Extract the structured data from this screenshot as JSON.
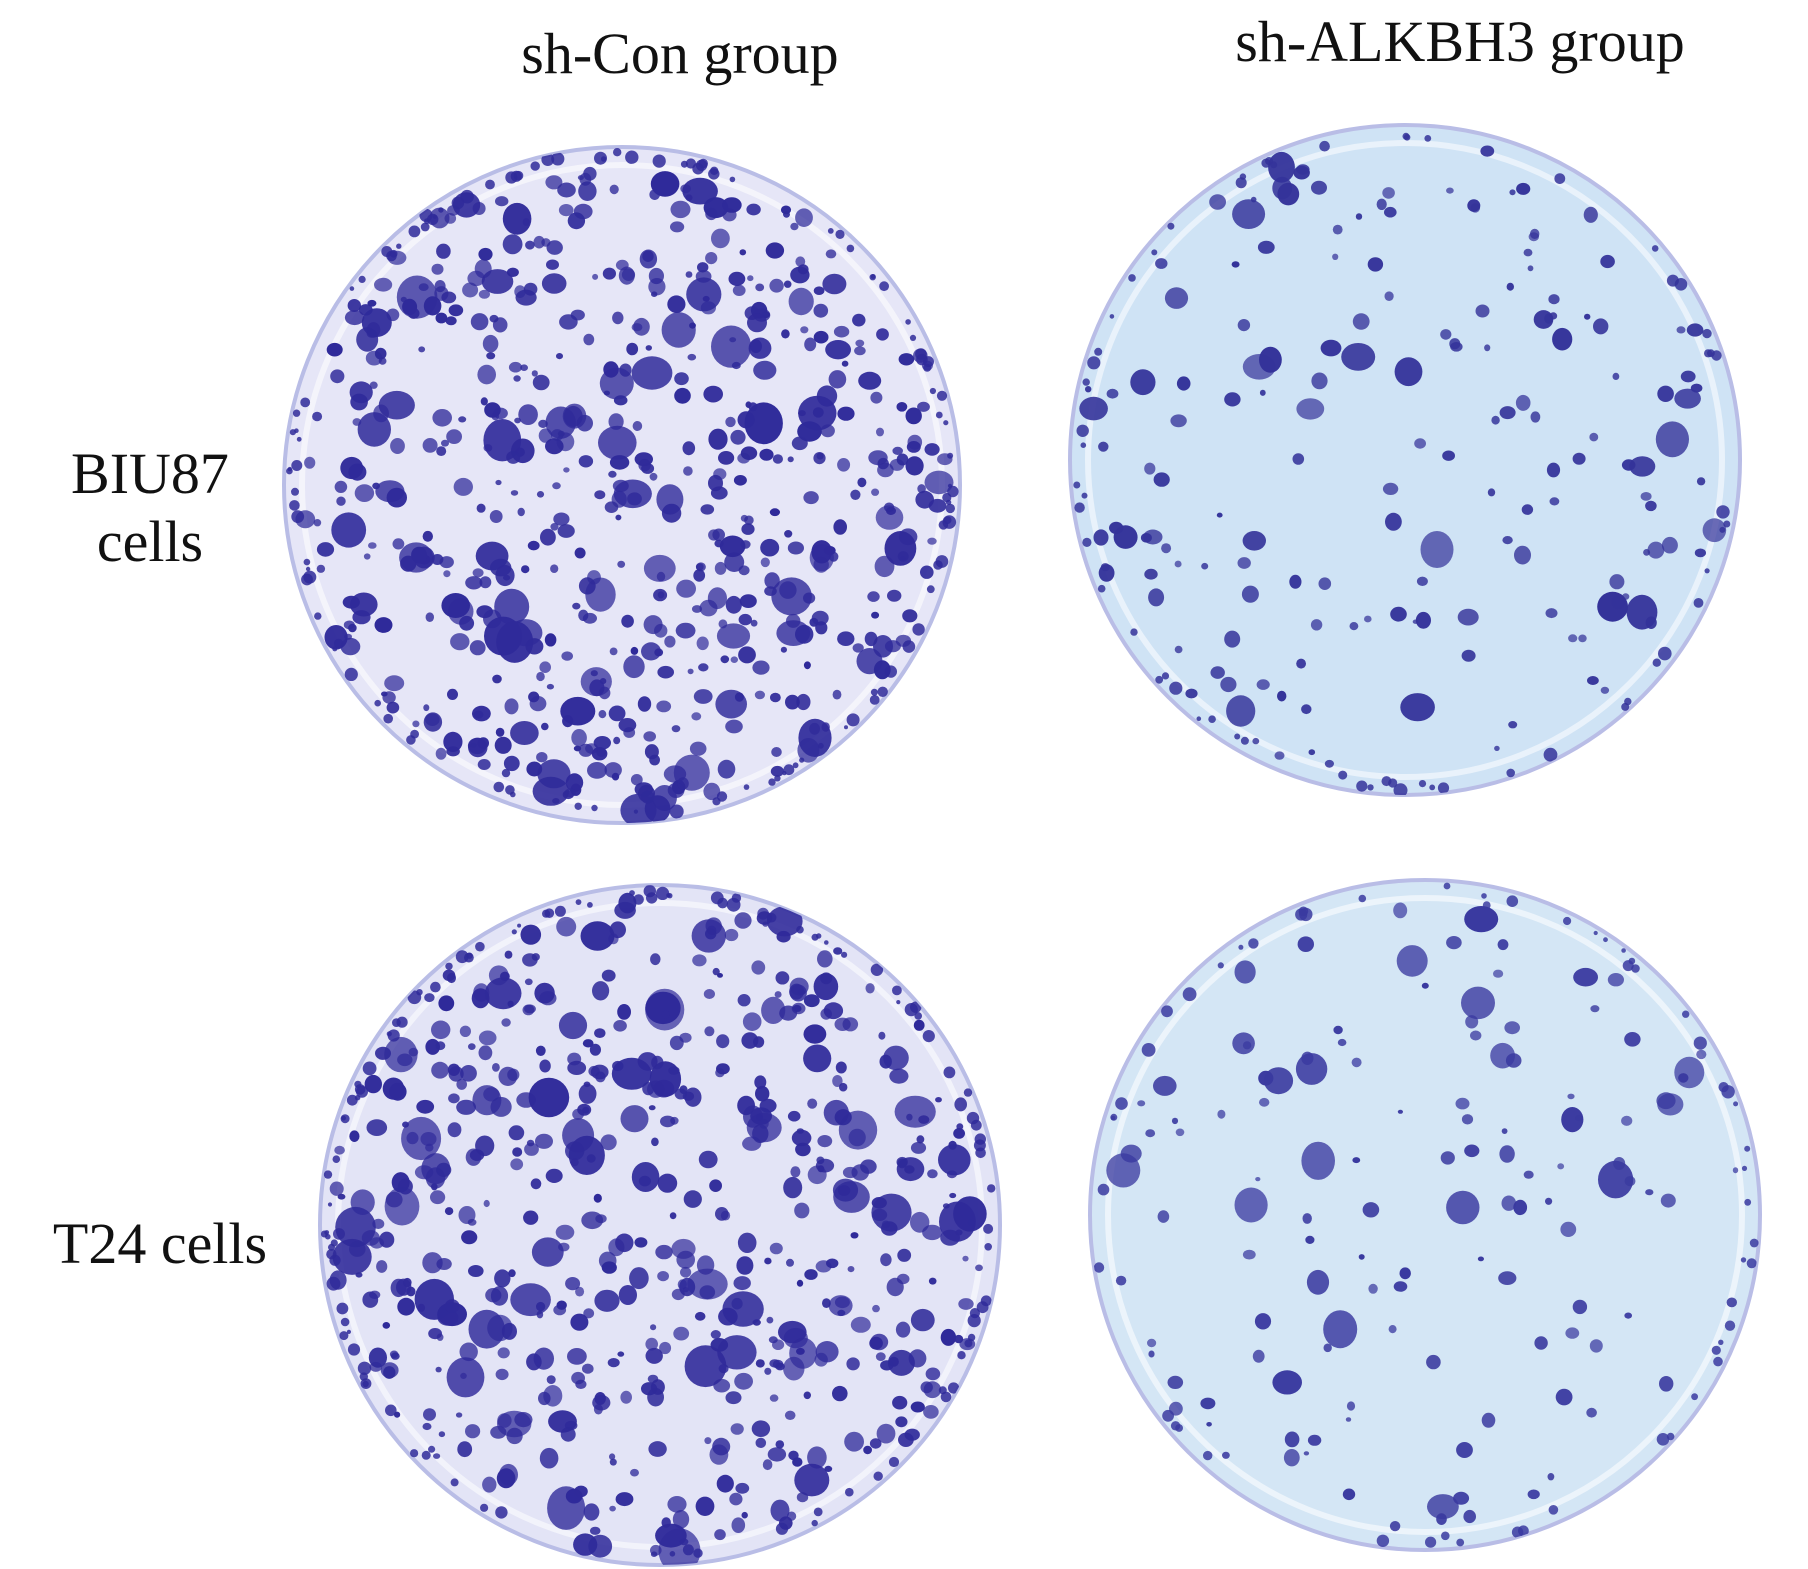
{
  "columns": [
    {
      "label": "sh-Con group"
    },
    {
      "label": "sh-ALKBH3 group"
    }
  ],
  "rows": [
    {
      "label_lines": [
        "BIU87",
        "cells"
      ]
    },
    {
      "label_lines": [
        "T24 cells"
      ]
    }
  ],
  "plates": [
    {
      "name": "biu87-sh-con",
      "plate_color": "#e6e6f7",
      "colony_color": "#2f2a9a",
      "density": 1.0
    },
    {
      "name": "biu87-sh-alkbh3",
      "plate_color": "#cfe3f5",
      "colony_color": "#34339a",
      "density": 0.28
    },
    {
      "name": "t24-sh-con",
      "plate_color": "#e3e4f6",
      "colony_color": "#2f2a9a",
      "density": 0.95
    },
    {
      "name": "t24-sh-alkbh3",
      "plate_color": "#d4e6f5",
      "colony_color": "#3a3aa0",
      "density": 0.22
    }
  ]
}
